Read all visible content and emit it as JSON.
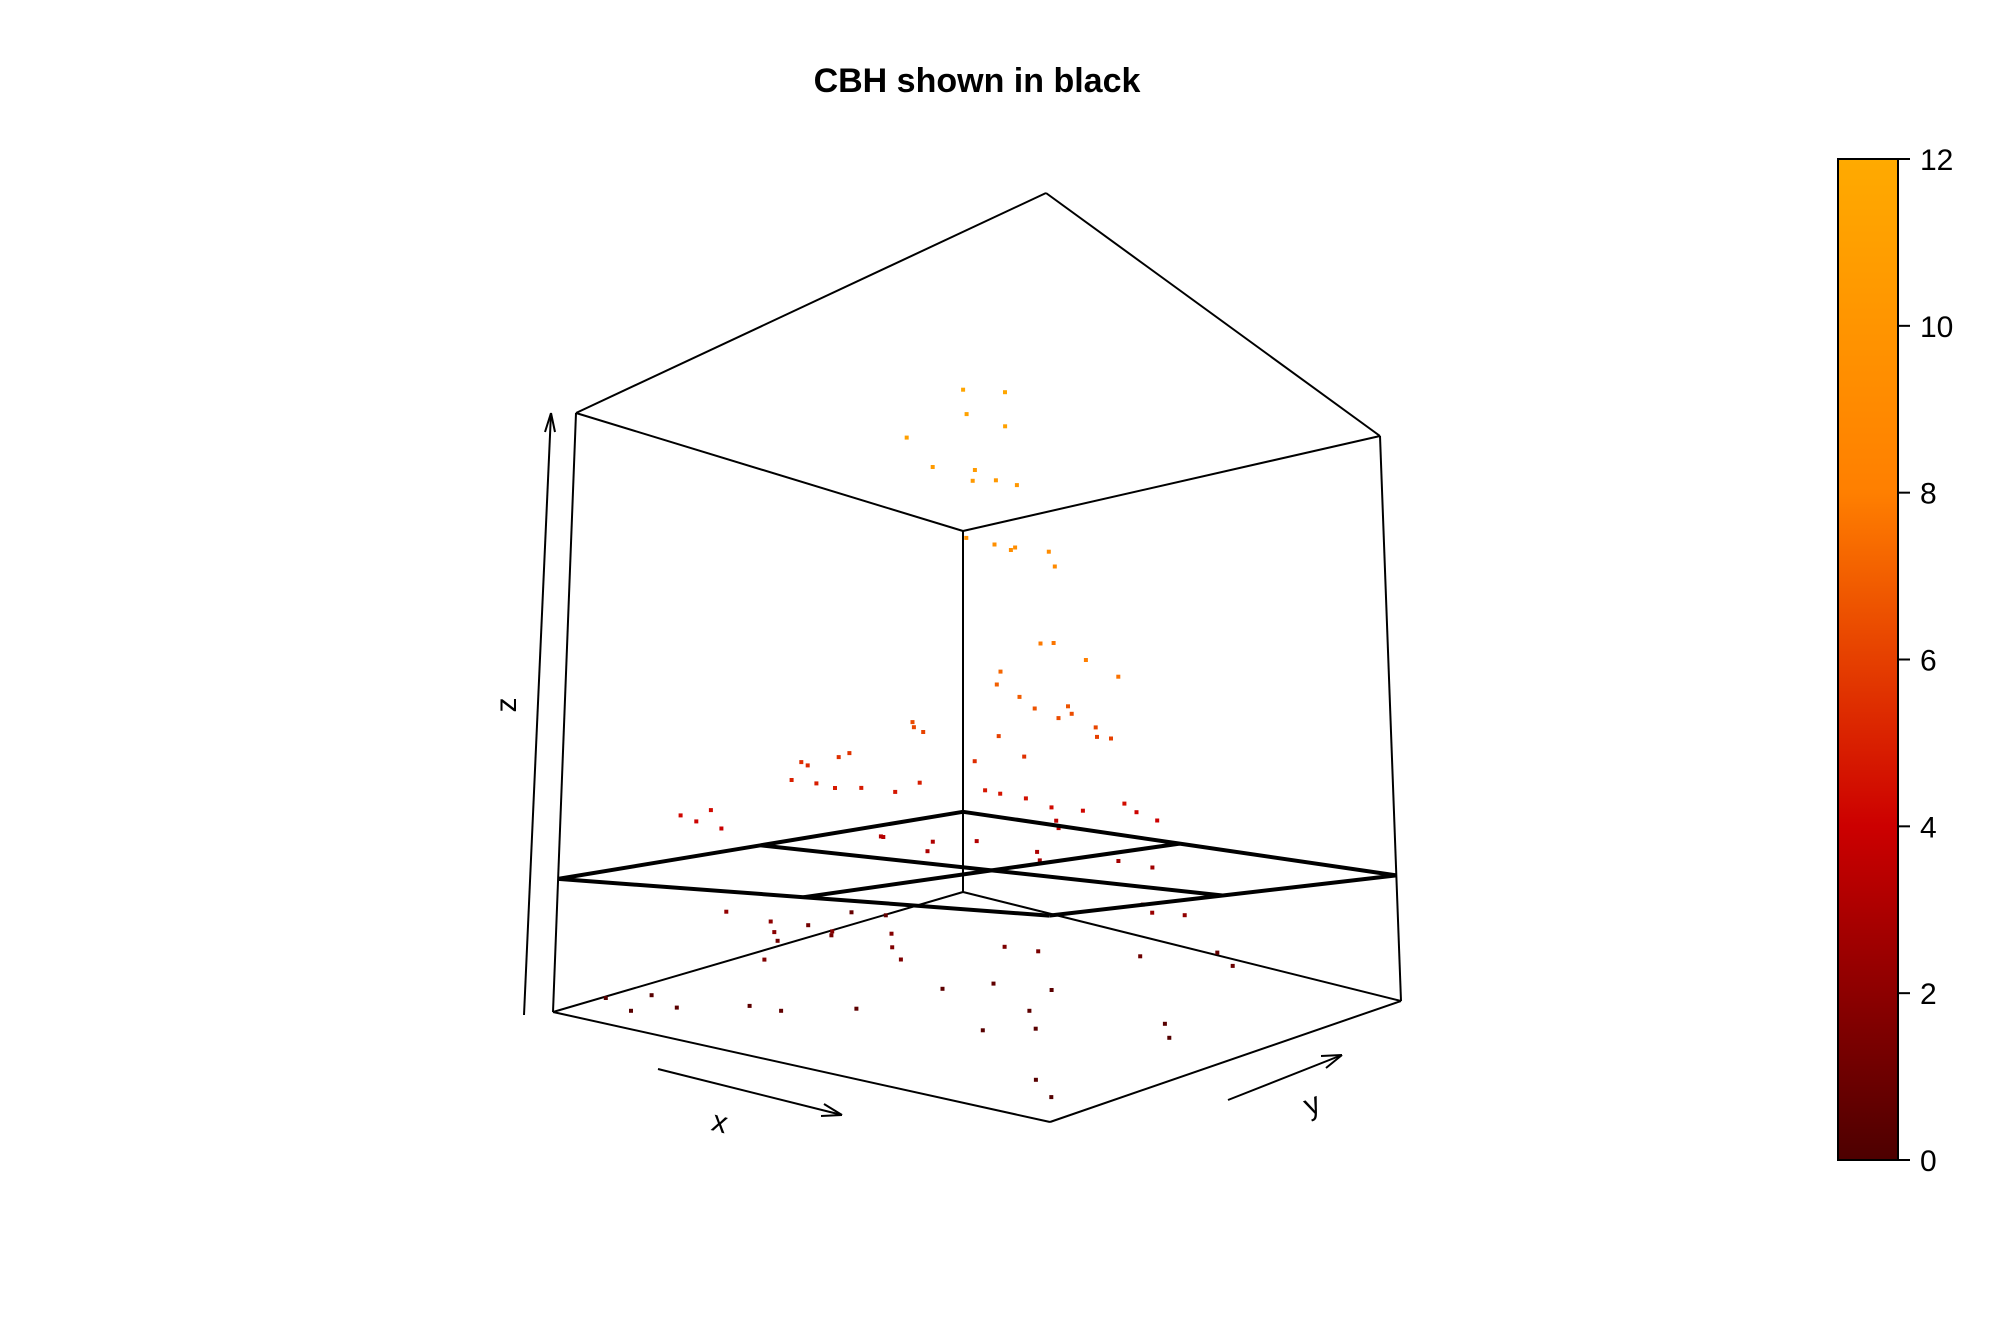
{
  "chart_data": {
    "type": "scatter",
    "title": "CBH shown in black",
    "xlabel": "x",
    "ylabel": "y",
    "zlabel": "z",
    "colorbar": {
      "range": [
        0,
        12
      ],
      "ticks": [
        "0",
        "2",
        "4",
        "6",
        "8",
        "10",
        "12"
      ],
      "colors": [
        "#4d0000",
        "#cc0000",
        "#ff7f00",
        "#ffaa00"
      ]
    },
    "cbh_color": "#000000",
    "points": [
      [
        0.75,
        0.1,
        11.5
      ],
      [
        0.63,
        0.1,
        11.0
      ],
      [
        0.78,
        0.18,
        11.6
      ],
      [
        0.75,
        0.22,
        11.2
      ],
      [
        0.72,
        0.15,
        11.3
      ],
      [
        0.64,
        0.16,
        10.6
      ],
      [
        0.68,
        0.22,
        10.4
      ],
      [
        0.7,
        0.2,
        10.5
      ],
      [
        0.73,
        0.22,
        10.3
      ],
      [
        0.76,
        0.24,
        10.2
      ],
      [
        0.62,
        0.28,
        9.6
      ],
      [
        0.65,
        0.32,
        9.5
      ],
      [
        0.67,
        0.34,
        9.4
      ],
      [
        0.71,
        0.3,
        9.3
      ],
      [
        0.76,
        0.33,
        9.2
      ],
      [
        0.75,
        0.36,
        9.0
      ],
      [
        0.48,
        0.78,
        8.0
      ],
      [
        0.52,
        0.82,
        7.6
      ],
      [
        0.7,
        0.42,
        7.7
      ],
      [
        0.64,
        0.46,
        7.8
      ],
      [
        0.6,
        0.4,
        7.2
      ],
      [
        0.56,
        0.44,
        7.0
      ],
      [
        0.48,
        0.6,
        6.9
      ],
      [
        0.53,
        0.58,
        6.6
      ],
      [
        0.55,
        0.62,
        6.4
      ],
      [
        0.62,
        0.56,
        6.6
      ],
      [
        0.66,
        0.52,
        6.4
      ],
      [
        0.6,
        0.66,
        6.2
      ],
      [
        0.57,
        0.7,
        6.0
      ],
      [
        0.45,
        0.88,
        6.0
      ],
      [
        0.4,
        0.64,
        6.0
      ],
      [
        0.36,
        0.46,
        6.3
      ],
      [
        0.33,
        0.5,
        6.2
      ],
      [
        0.3,
        0.56,
        6.1
      ],
      [
        0.44,
        0.66,
        5.5
      ],
      [
        0.56,
        0.38,
        5.4
      ],
      [
        0.24,
        0.44,
        5.6
      ],
      [
        0.2,
        0.46,
        5.5
      ],
      [
        0.17,
        0.4,
        5.4
      ],
      [
        0.15,
        0.44,
        5.3
      ],
      [
        0.2,
        0.34,
        5.0
      ],
      [
        0.22,
        0.38,
        4.9
      ],
      [
        0.26,
        0.38,
        4.8
      ],
      [
        0.3,
        0.4,
        4.8
      ],
      [
        0.34,
        0.44,
        4.7
      ],
      [
        0.36,
        0.48,
        4.9
      ],
      [
        0.42,
        0.58,
        4.7
      ],
      [
        0.42,
        0.62,
        4.6
      ],
      [
        0.46,
        0.64,
        4.5
      ],
      [
        0.5,
        0.66,
        4.3
      ],
      [
        0.52,
        0.72,
        4.2
      ],
      [
        0.58,
        0.76,
        4.4
      ],
      [
        0.62,
        0.8,
        4.0
      ],
      [
        0.54,
        0.84,
        4.1
      ],
      [
        0.05,
        0.24,
        4.2
      ],
      [
        0.08,
        0.28,
        4.3
      ],
      [
        0.1,
        0.22,
        4.1
      ],
      [
        0.12,
        0.26,
        3.9
      ],
      [
        0.34,
        0.86,
        3.6
      ],
      [
        0.38,
        0.82,
        3.5
      ],
      [
        0.14,
        0.64,
        3.2
      ],
      [
        0.18,
        0.6,
        3.3
      ],
      [
        0.22,
        0.68,
        3.1
      ],
      [
        0.26,
        0.62,
        3.0
      ],
      [
        0.3,
        0.7,
        3.2
      ],
      [
        0.4,
        0.74,
        3.0
      ],
      [
        0.44,
        0.7,
        2.9
      ],
      [
        0.48,
        0.86,
        2.7
      ],
      [
        0.54,
        0.88,
        2.6
      ],
      [
        0.8,
        0.56,
        2.4
      ],
      [
        0.7,
        0.66,
        2.3
      ],
      [
        0.76,
        0.7,
        2.1
      ],
      [
        0.26,
        0.22,
        2.0
      ],
      [
        0.2,
        0.18,
        2.2
      ],
      [
        0.3,
        0.18,
        1.9
      ],
      [
        0.34,
        0.28,
        1.8
      ],
      [
        0.4,
        0.36,
        1.7
      ],
      [
        0.45,
        0.3,
        1.6
      ],
      [
        0.5,
        0.26,
        1.5
      ],
      [
        0.56,
        0.46,
        1.5
      ],
      [
        0.6,
        0.5,
        1.4
      ],
      [
        0.36,
        0.08,
        1.6
      ],
      [
        0.24,
        0.4,
        1.3
      ],
      [
        0.14,
        0.46,
        1.2
      ],
      [
        0.16,
        0.36,
        1.1
      ],
      [
        0.66,
        0.7,
        1.0
      ],
      [
        0.7,
        0.86,
        0.8
      ],
      [
        0.8,
        0.78,
        0.9
      ],
      [
        0.06,
        0.66,
        0.8
      ],
      [
        0.1,
        0.7,
        0.7
      ],
      [
        0.46,
        0.42,
        0.5
      ],
      [
        0.52,
        0.48,
        0.6
      ],
      [
        0.58,
        0.56,
        0.4
      ],
      [
        0.44,
        0.22,
        0.5
      ],
      [
        0.38,
        0.1,
        0.6
      ],
      [
        0.3,
        0.12,
        0.5
      ],
      [
        0.66,
        0.4,
        0.5
      ],
      [
        0.72,
        0.34,
        0.4
      ],
      [
        0.64,
        0.3,
        0.3
      ],
      [
        0.84,
        0.54,
        0.3
      ],
      [
        0.88,
        0.5,
        0.2
      ],
      [
        0.2,
        0.06,
        0.4
      ],
      [
        0.1,
        0.12,
        0.3
      ],
      [
        0.14,
        0.02,
        0.3
      ],
      [
        0.04,
        0.08,
        0.2
      ],
      [
        0.96,
        0.06,
        0.2
      ],
      [
        0.9,
        0.1,
        0.3
      ]
    ],
    "cbh_surface": {
      "x": [
        0,
        0.5,
        1
      ],
      "y": [
        0,
        0.5,
        1
      ],
      "z": [
        [
          3.0,
          3.0,
          3.0
        ],
        [
          3.0,
          3.0,
          3.0
        ],
        [
          3.0,
          3.0,
          3.0
        ]
      ]
    },
    "zlim": [
      0,
      13.5
    ],
    "grid": false,
    "legend": "colorbar-right"
  }
}
